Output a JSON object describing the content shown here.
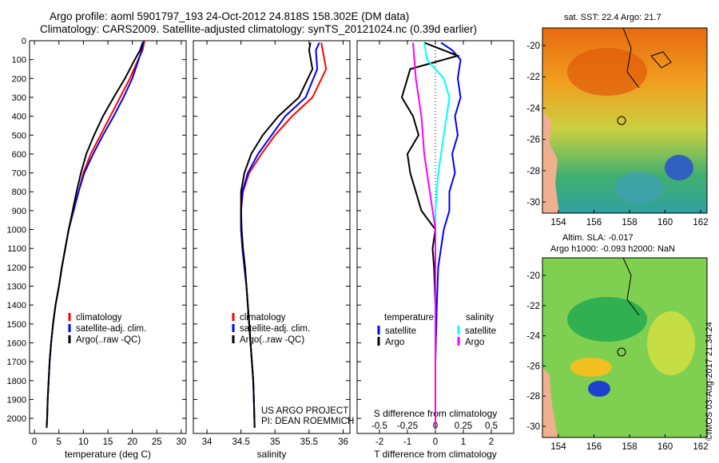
{
  "header": {
    "title_line1": "Argo profile: aoml 5901797_193 24-Oct-2012 24.818S 158.302E (DM data)",
    "title_line2": "Climatology: CARS2009. Satellite-adjusted climatology: synTS_20121024.nc (0.39d earlier)"
  },
  "colors": {
    "climatology": "#ff0000",
    "satellite": "#0000ff",
    "argo": "#000000",
    "sal_satellite": "#00ffff",
    "sal_argo": "#ff00ff"
  },
  "chart_data": [
    {
      "id": "temperature",
      "type": "line",
      "xlabel": "temperature (deg C)",
      "xlim": [
        -1,
        31
      ],
      "xticks": [
        0,
        5,
        10,
        15,
        20,
        25,
        30
      ],
      "ylim": [
        2080,
        0
      ],
      "yticks": [
        0,
        100,
        200,
        300,
        400,
        500,
        600,
        700,
        800,
        900,
        1000,
        1100,
        1200,
        1300,
        1400,
        1500,
        1600,
        1700,
        1800,
        1900,
        2000
      ],
      "legend": [
        "climatology",
        "satellite-adj. clim.",
        "Argo(..raw -QC)"
      ],
      "series": [
        {
          "name": "climatology",
          "color": "#ff0000",
          "x": [
            22.5,
            22.1,
            21.2,
            19.5,
            17.5,
            15.5,
            13.5,
            11.5,
            10,
            9,
            8,
            7,
            6.3,
            5.6,
            5,
            4.3,
            3.8,
            3.4,
            3.1,
            2.9,
            2.7,
            2.6,
            2.5
          ],
          "y": [
            0,
            50,
            100,
            200,
            300,
            400,
            500,
            600,
            700,
            800,
            900,
            1000,
            1100,
            1200,
            1300,
            1400,
            1500,
            1600,
            1700,
            1800,
            1900,
            2000,
            2050
          ]
        },
        {
          "name": "satellite-adj. clim.",
          "color": "#0000ff",
          "x": [
            22.3,
            21.9,
            21.3,
            20,
            18.2,
            16.2,
            14,
            12,
            10.2,
            9,
            8,
            7,
            6.3,
            5.6,
            5,
            4.3,
            3.8,
            3.4,
            3.1,
            2.9,
            2.7,
            2.6,
            2.5
          ],
          "y": [
            0,
            50,
            100,
            200,
            300,
            400,
            500,
            600,
            700,
            800,
            900,
            1000,
            1100,
            1200,
            1300,
            1400,
            1500,
            1600,
            1700,
            1800,
            1900,
            2000,
            2050
          ]
        },
        {
          "name": "Argo(..raw -QC)",
          "color": "#000000",
          "x": [
            22.1,
            21.6,
            20.5,
            18.5,
            16.2,
            14,
            12.2,
            10.6,
            9.5,
            8.6,
            7.8,
            7,
            6.3,
            5.6,
            5,
            4.3,
            3.8,
            3.4,
            3.1,
            2.9,
            2.7,
            2.6,
            2.5
          ],
          "y": [
            10,
            50,
            100,
            200,
            300,
            400,
            500,
            600,
            700,
            800,
            900,
            1000,
            1100,
            1200,
            1300,
            1400,
            1500,
            1600,
            1700,
            1800,
            1900,
            2000,
            2050
          ]
        }
      ]
    },
    {
      "id": "salinity",
      "type": "line",
      "xlabel": "salinity",
      "xlim": [
        33.8,
        36.1
      ],
      "xticks": [
        34,
        34.5,
        35,
        35.5,
        36
      ],
      "ylim": [
        2080,
        0
      ],
      "legend": [
        "climatology",
        "satellite-adj. clim.",
        "Argo(..raw -QC)"
      ],
      "annotation": [
        "US ARGO PROJECT",
        "PI: DEAN ROEMMICH"
      ],
      "series": [
        {
          "name": "climatology",
          "color": "#ff0000",
          "x": [
            35.68,
            35.7,
            35.75,
            35.55,
            35.25,
            35,
            34.8,
            34.62,
            34.53,
            34.5,
            34.5,
            34.52,
            34.55,
            34.58,
            34.6,
            34.62,
            34.64,
            34.66,
            34.68,
            34.69,
            34.7
          ],
          "y": [
            10,
            50,
            150,
            300,
            400,
            500,
            600,
            700,
            800,
            900,
            1000,
            1100,
            1200,
            1300,
            1400,
            1500,
            1600,
            1700,
            1800,
            1900,
            2050
          ]
        },
        {
          "name": "satellite-adj. clim.",
          "color": "#0000ff",
          "x": [
            35.65,
            35.6,
            35.62,
            35.45,
            35.15,
            34.95,
            34.75,
            34.6,
            34.52,
            34.5,
            34.5,
            34.52,
            34.55,
            34.58,
            34.6,
            34.62,
            34.64,
            34.66,
            34.68,
            34.69,
            34.7
          ],
          "y": [
            10,
            50,
            150,
            300,
            400,
            500,
            600,
            700,
            800,
            900,
            1000,
            1100,
            1200,
            1300,
            1400,
            1500,
            1600,
            1700,
            1800,
            1900,
            2050
          ]
        },
        {
          "name": "Argo(..raw -QC)",
          "color": "#000000",
          "x": [
            35.52,
            35.5,
            35.55,
            35.35,
            35.05,
            34.82,
            34.65,
            34.55,
            34.5,
            34.5,
            34.51,
            34.53,
            34.56,
            34.58,
            34.6,
            34.62,
            34.64,
            34.66,
            34.68,
            34.69,
            34.7
          ],
          "y": [
            10,
            50,
            150,
            300,
            400,
            500,
            600,
            700,
            800,
            900,
            1000,
            1100,
            1200,
            1300,
            1400,
            1500,
            1600,
            1700,
            1800,
            1900,
            2050
          ]
        }
      ]
    },
    {
      "id": "difference",
      "type": "line",
      "xlabel": "T difference from climatology",
      "xlabel_top": "S difference from climatology",
      "xlim": [
        -2.8,
        2.8
      ],
      "xticks": [
        -2,
        -1,
        0,
        1,
        2
      ],
      "sticks_labels": [
        "-0.5",
        "-0.25",
        "0",
        "0.25",
        "0.5"
      ],
      "sticks_pos": [
        -2,
        -1,
        0,
        1,
        2
      ],
      "ylim": [
        2080,
        0
      ],
      "legend_headers": [
        "temperature",
        "salinity"
      ],
      "legend_left": [
        "satellite",
        "Argo"
      ],
      "legend_right": [
        "satellite",
        "Argo"
      ],
      "series": [
        {
          "name": "T satellite",
          "color": "#0000ff",
          "x": [
            0.2,
            0.6,
            0.9,
            0.8,
            0.9,
            0.7,
            0.8,
            0.6,
            0.7,
            0.5,
            0.5,
            0.3,
            0.2,
            0.1,
            0.05,
            0,
            0
          ],
          "y": [
            10,
            50,
            100,
            200,
            300,
            400,
            500,
            600,
            700,
            800,
            900,
            1000,
            1100,
            1200,
            1400,
            1700,
            2050
          ]
        },
        {
          "name": "T Argo",
          "color": "#000000",
          "x": [
            -0.4,
            0.8,
            -0.9,
            -1.2,
            -0.8,
            -0.6,
            -1,
            -0.9,
            -0.7,
            -0.5,
            0,
            -0.1,
            -0.05,
            0,
            0,
            0
          ],
          "y": [
            10,
            80,
            150,
            300,
            400,
            500,
            600,
            700,
            800,
            900,
            1000,
            1100,
            1200,
            1400,
            1700,
            2050
          ]
        },
        {
          "name": "S satellite",
          "color": "#00ffff",
          "x": [
            -0.4,
            -0.3,
            0.3,
            0.5,
            0.4,
            0.3,
            0.1,
            0,
            0,
            0,
            0
          ],
          "y": [
            10,
            100,
            200,
            300,
            400,
            500,
            700,
            900,
            1100,
            1500,
            2050
          ]
        },
        {
          "name": "S Argo",
          "color": "#ff00ff",
          "x": [
            -0.8,
            -0.7,
            -0.5,
            -0.4,
            -0.2,
            0,
            0,
            0
          ],
          "y": [
            10,
            200,
            400,
            600,
            800,
            1000,
            1400,
            2050
          ]
        }
      ]
    }
  ],
  "map_sst": {
    "title": "sat. SST: 22.4  Argo: 21.7",
    "xticks": [
      "154",
      "156",
      "158",
      "160",
      "162"
    ],
    "yticks": [
      "-20",
      "-22",
      "-24",
      "-26",
      "-28",
      "-30"
    ]
  },
  "map_sla": {
    "title_line1": "Altim. SLA: -0.017",
    "title_line2": "Argo h1000: -0.093 h2000: NaN",
    "xticks": [
      "154",
      "156",
      "158",
      "160",
      "162"
    ],
    "yticks": [
      "-20",
      "-22",
      "-24",
      "-26",
      "-28",
      "-30"
    ]
  },
  "footer": {
    "credit": "©IMOS 03-Aug-2017 21:34:24"
  }
}
